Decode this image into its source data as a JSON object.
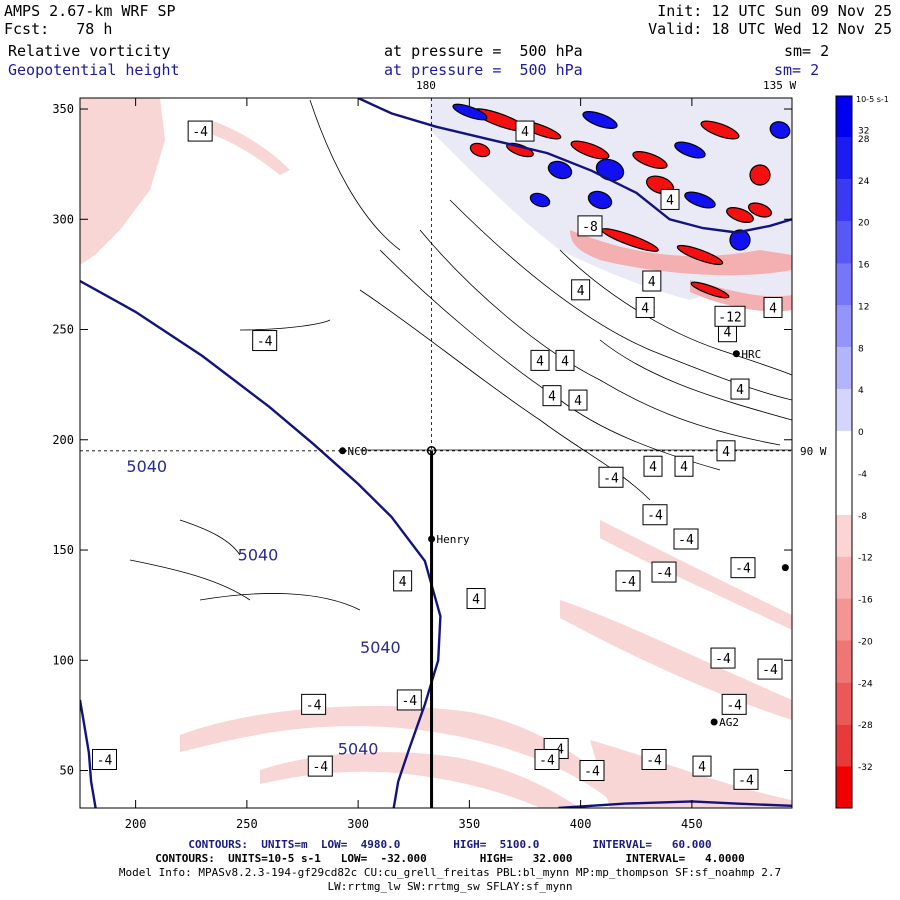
{
  "header": {
    "model": "AMPS 2.67-km WRF SP",
    "fcst": "Fcst:   78 h",
    "init": "Init: 12 UTC Sun 09 Nov 25",
    "valid": "Valid: 18 UTC Wed 12 Nov 25",
    "field1_name": "Relative vorticity",
    "field1_level": "at pressure =  500 hPa",
    "field1_sm": "sm= 2",
    "field2_name": "Geopotential height",
    "field2_level": "at pressure =  500 hPa",
    "field2_sm": "sm= 2"
  },
  "map_labels": {
    "lon_top_180": "180",
    "lon_top_135w": "135 W",
    "lon_right_90w": "90 W"
  },
  "stations": [
    {
      "name": "NCO",
      "x": 293,
      "y": 195
    },
    {
      "name": "Henry",
      "x": 333,
      "y": 155
    },
    {
      "name": "HRC",
      "x": 470,
      "y": 239
    },
    {
      "name": "AG2",
      "x": 460,
      "y": 72
    },
    {
      "name": "",
      "x": 492,
      "y": 142
    }
  ],
  "colorbar": {
    "title": "10-5 s-1",
    "ticks": [
      "32",
      "28",
      "24",
      "20",
      "16",
      "12",
      "8",
      "4",
      "0",
      "-4",
      "-8",
      "-12",
      "-16",
      "-20",
      "-24",
      "-28",
      "-32"
    ],
    "colors": [
      "#0000f0",
      "#1c1cf2",
      "#3a3af4",
      "#5858f6",
      "#7676f8",
      "#9494fa",
      "#b4b4fc",
      "#d4d4fe",
      "#ffffff",
      "#ffffff",
      "#fcd4d4",
      "#f8b4b4",
      "#f49494",
      "#f07676",
      "#ec5858",
      "#e83a3a",
      "#f00000"
    ]
  },
  "chart_data": {
    "type": "contour",
    "xlim": [
      175,
      495
    ],
    "ylim": [
      33,
      355
    ],
    "x_ticks": [
      200,
      250,
      300,
      350,
      400,
      450
    ],
    "y_ticks": [
      50,
      100,
      150,
      200,
      250,
      300,
      350
    ],
    "cross_section": {
      "x": 333,
      "y_from": 33,
      "y_to": 195
    },
    "dashed_lon_180_x": 333,
    "dashed_lat_y": 195,
    "height_contours": [
      {
        "label": "5040",
        "points": [
          [
            175,
            272
          ],
          [
            200,
            258
          ],
          [
            230,
            238
          ],
          [
            260,
            215
          ],
          [
            280,
            198
          ],
          [
            300,
            180
          ],
          [
            315,
            165
          ],
          [
            330,
            145
          ],
          [
            337,
            120
          ],
          [
            336,
            100
          ],
          [
            330,
            80
          ],
          [
            323,
            60
          ],
          [
            318,
            45
          ],
          [
            316,
            33
          ]
        ]
      },
      {
        "label": "",
        "points": [
          [
            175,
            82
          ],
          [
            177,
            70
          ],
          [
            179,
            58
          ],
          [
            180,
            45
          ],
          [
            182,
            33
          ]
        ]
      },
      {
        "label": "",
        "points": [
          [
            300,
            355
          ],
          [
            315,
            348
          ],
          [
            335,
            342
          ],
          [
            360,
            336
          ],
          [
            385,
            330
          ],
          [
            405,
            322
          ],
          [
            425,
            312
          ],
          [
            440,
            300
          ],
          [
            455,
            296
          ],
          [
            470,
            294
          ],
          [
            485,
            297
          ],
          [
            495,
            300
          ]
        ]
      },
      {
        "label": "",
        "points": [
          [
            390,
            33
          ],
          [
            420,
            35
          ],
          [
            450,
            36
          ],
          [
            470,
            35
          ],
          [
            495,
            34
          ]
        ]
      }
    ],
    "height_labels": [
      {
        "text": "5040",
        "x": 205,
        "y": 188
      },
      {
        "text": "5040",
        "x": 255,
        "y": 148
      },
      {
        "text": "5040",
        "x": 310,
        "y": 106
      },
      {
        "text": "5040",
        "x": 300,
        "y": 60
      }
    ],
    "vort_contour_labels": [
      {
        "text": "-4",
        "x": 229,
        "y": 340
      },
      {
        "text": "4",
        "x": 375,
        "y": 340
      },
      {
        "text": "4",
        "x": 432,
        "y": 272
      },
      {
        "text": "4",
        "x": 400,
        "y": 268
      },
      {
        "text": "4",
        "x": 429,
        "y": 260
      },
      {
        "text": "4",
        "x": 466,
        "y": 249
      },
      {
        "text": "-4",
        "x": 258,
        "y": 245
      },
      {
        "text": "4",
        "x": 540,
        "y": 236
      },
      {
        "text": "4",
        "x": 565,
        "y": 236
      },
      {
        "text": "4",
        "x": 552,
        "y": 220
      },
      {
        "text": "4",
        "x": 578,
        "y": 218
      },
      {
        "text": "4",
        "x": 740,
        "y": 223
      },
      {
        "text": "-8",
        "x": 590,
        "y": 297
      },
      {
        "text": "-12",
        "x": 730,
        "y": 256
      },
      {
        "text": "4",
        "x": 773,
        "y": 260
      },
      {
        "text": "4",
        "x": 726,
        "y": 195
      },
      {
        "text": "4",
        "x": 653,
        "y": 188
      },
      {
        "text": "4",
        "x": 684,
        "y": 188
      },
      {
        "text": "-4",
        "x": 611,
        "y": 183
      },
      {
        "text": "-4",
        "x": 655,
        "y": 166
      },
      {
        "text": "-4",
        "x": 686,
        "y": 155
      },
      {
        "text": "4",
        "x": 320,
        "y": 136
      },
      {
        "text": "4",
        "x": 353,
        "y": 128
      },
      {
        "text": "-4",
        "x": 628,
        "y": 136
      },
      {
        "text": "-4",
        "x": 664,
        "y": 140
      },
      {
        "text": "-4",
        "x": 743,
        "y": 142
      },
      {
        "text": "-4",
        "x": 723,
        "y": 101
      },
      {
        "text": "-4",
        "x": 770,
        "y": 96
      },
      {
        "text": "-4",
        "x": 280,
        "y": 80
      },
      {
        "text": "-4",
        "x": 323,
        "y": 82
      },
      {
        "text": "-4",
        "x": 469,
        "y": 80
      },
      {
        "text": "-4",
        "x": 389,
        "y": 60
      },
      {
        "text": "-4",
        "x": 433,
        "y": 55
      },
      {
        "text": "-4",
        "x": 186,
        "y": 55
      },
      {
        "text": "-4",
        "x": 283,
        "y": 52
      },
      {
        "text": "-4",
        "x": 547,
        "y": 55
      },
      {
        "text": "-4",
        "x": 592,
        "y": 50
      },
      {
        "text": "4",
        "x": 702,
        "y": 52
      },
      {
        "text": "-4",
        "x": 746,
        "y": 46
      },
      {
        "text": "4",
        "x": 670,
        "y": 309
      }
    ]
  },
  "footer": {
    "line1": "CONTOURS:  UNITS=m  LOW=  4980.0        HIGH=  5100.0        INTERVAL=   60.000",
    "line2": "CONTOURS:  UNITS=10-5 s-1   LOW=  -32.000        HIGH=   32.000        INTERVAL=   4.0000",
    "line3": "Model Info: MPASv8.2.3-194-gf29cd82c CU:cu_grell_freitas PBL:bl_mynn MP:mp_thompson SF:sf_noahmp 2.7",
    "line4": "LW:rrtmg_lw SW:rrtmg_sw SFLAY:sf_mynn"
  }
}
